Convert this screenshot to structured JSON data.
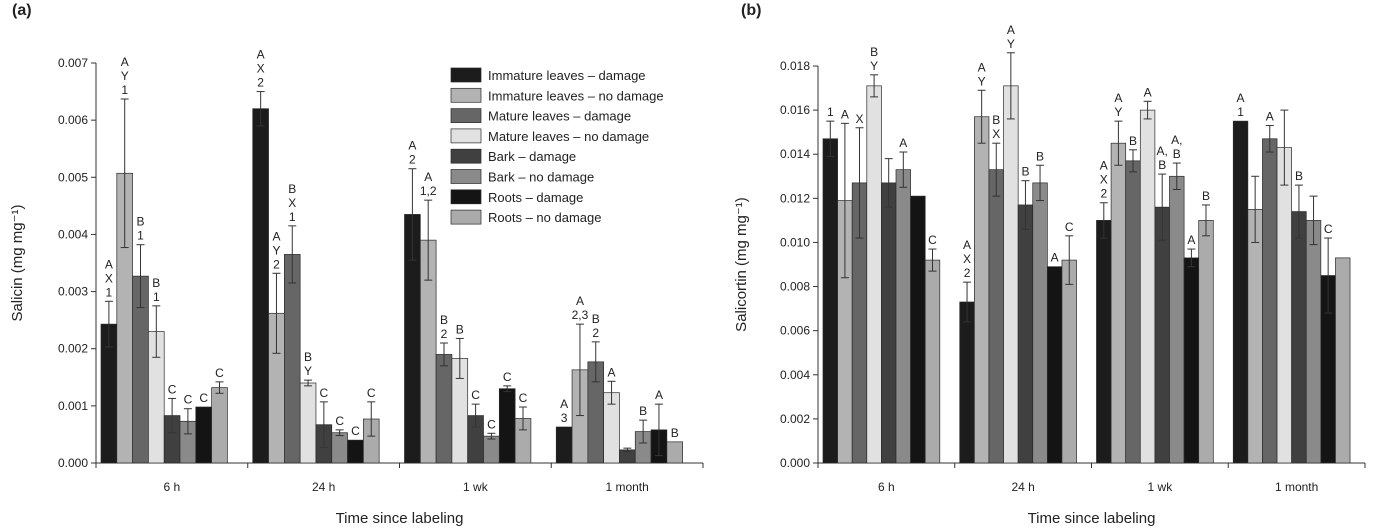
{
  "series_styles": [
    {
      "name": "Immature leaves – damage",
      "color": "#1c1c1c"
    },
    {
      "name": "Immature leaves – no damage",
      "color": "#b3b3b3"
    },
    {
      "name": "Mature leaves – damage",
      "color": "#666666"
    },
    {
      "name": "Mature leaves – no damage",
      "color": "#e1e1e1"
    },
    {
      "name": "Bark – damage",
      "color": "#404040"
    },
    {
      "name": "Bark – no damage",
      "color": "#8a8a8a"
    },
    {
      "name": "Roots – damage",
      "color": "#141414"
    },
    {
      "name": "Roots – no damage",
      "color": "#ababab"
    }
  ],
  "chart_data": [
    {
      "panel_label": "(a)",
      "type": "bar",
      "categories": [
        "6 h",
        "24 h",
        "1 wk",
        "1 month"
      ],
      "xlabel": "Time since labeling",
      "ylabel": "Salicin (mg mg⁻¹)",
      "ylim": [
        0,
        0.007
      ],
      "yticks": [
        "0.000",
        "0.001",
        "0.002",
        "0.003",
        "0.004",
        "0.005",
        "0.006",
        "0.007"
      ],
      "legend_position": "top-right",
      "series": [
        {
          "name": "Immature leaves – damage",
          "values": [
            0.00243,
            0.0062,
            0.00435,
            0.00063
          ],
          "errors": [
            0.0004,
            0.0003,
            0.0008,
            0.0
          ],
          "letters": [
            [
              "A",
              "X",
              "1"
            ],
            [
              "A",
              "X",
              "2"
            ],
            [
              "A",
              "2"
            ],
            [
              "A",
              "3"
            ]
          ]
        },
        {
          "name": "Immature leaves – no damage",
          "values": [
            0.00507,
            0.00262,
            0.0039,
            0.00163
          ],
          "errors": [
            0.0013,
            0.0007,
            0.0007,
            0.0008
          ],
          "letters": [
            [
              "A",
              "Y",
              "1"
            ],
            [
              "A",
              "Y",
              "2"
            ],
            [
              "A",
              "1,2"
            ],
            [
              "A",
              "2,3"
            ]
          ]
        },
        {
          "name": "Mature leaves – damage",
          "values": [
            0.00327,
            0.00365,
            0.0019,
            0.00177
          ],
          "errors": [
            0.00055,
            0.0005,
            0.0002,
            0.00035
          ],
          "letters": [
            [
              "B",
              "1"
            ],
            [
              "B",
              "X",
              "1"
            ],
            [
              "B",
              "2"
            ],
            [
              "B",
              "2"
            ]
          ]
        },
        {
          "name": "Mature leaves – no damage",
          "values": [
            0.0023,
            0.0014,
            0.00183,
            0.00123
          ],
          "errors": [
            0.00045,
            5e-05,
            0.00035,
            0.0002
          ],
          "letters": [
            [
              "B",
              "1"
            ],
            [
              "B",
              "Y"
            ],
            [
              "B"
            ],
            [
              "A"
            ]
          ]
        },
        {
          "name": "Bark – damage",
          "values": [
            0.00083,
            0.00067,
            0.00083,
            0.00023
          ],
          "errors": [
            0.0003,
            0.0004,
            0.0002,
            3e-05
          ],
          "letters": [
            [
              "C"
            ],
            [
              "C"
            ],
            [
              "C"
            ],
            []
          ]
        },
        {
          "name": "Bark – no damage",
          "values": [
            0.00073,
            0.00053,
            0.00047,
            0.00055
          ],
          "errors": [
            0.00022,
            5e-05,
            5e-05,
            0.0002
          ],
          "letters": [
            [
              "C"
            ],
            [
              "C"
            ],
            [
              "C"
            ],
            [
              "B"
            ]
          ]
        },
        {
          "name": "Roots – damage",
          "values": [
            0.00098,
            0.0004,
            0.0013,
            0.00058
          ],
          "errors": [
            0.0,
            0.0,
            5e-05,
            0.00045
          ],
          "letters": [
            [
              "C"
            ],
            [
              "C"
            ],
            [
              "C"
            ],
            [
              "A"
            ]
          ]
        },
        {
          "name": "Roots – no damage",
          "values": [
            0.00132,
            0.00077,
            0.00078,
            0.00037
          ],
          "errors": [
            0.0001,
            0.0003,
            0.0002,
            0.0
          ],
          "letters": [
            [
              "C"
            ],
            [
              "C"
            ],
            [
              "C"
            ],
            [
              "B"
            ]
          ]
        }
      ]
    },
    {
      "panel_label": "(b)",
      "type": "bar",
      "categories": [
        "6 h",
        "24 h",
        "1 wk",
        "1 month"
      ],
      "xlabel": "Time since labeling",
      "ylabel": "Salicortin (mg mg⁻¹)",
      "ylim": [
        0,
        0.018
      ],
      "yticks": [
        "0.000",
        "0.002",
        "0.004",
        "0.006",
        "0.008",
        "0.010",
        "0.012",
        "0.014",
        "0.016",
        "0.018"
      ],
      "series": [
        {
          "name": "Immature leaves – damage",
          "values": [
            0.0147,
            0.0073,
            0.011,
            0.0155
          ],
          "errors": [
            0.0008,
            0.0009,
            0.0008,
            0.0
          ],
          "letters": [
            [
              "1"
            ],
            [
              "A",
              "X",
              "2"
            ],
            [
              "A",
              "X",
              "2"
            ],
            [
              "A",
              "1"
            ]
          ]
        },
        {
          "name": "Immature leaves – no damage",
          "values": [
            0.0119,
            0.0157,
            0.0145,
            0.0115
          ],
          "errors": [
            0.0035,
            0.0012,
            0.001,
            0.0015
          ],
          "letters": [
            [
              "A"
            ],
            [
              "A",
              "Y"
            ],
            [
              "A",
              "Y"
            ],
            []
          ]
        },
        {
          "name": "Mature leaves – damage",
          "values": [
            0.0127,
            0.0133,
            0.0137,
            0.0147
          ],
          "errors": [
            0.0025,
            0.0012,
            0.0005,
            0.0006
          ],
          "letters": [
            [
              "X"
            ],
            [
              "B",
              "X"
            ],
            [
              "B"
            ],
            [
              "A"
            ]
          ]
        },
        {
          "name": "Mature leaves – no damage",
          "values": [
            0.0171,
            0.0171,
            0.016,
            0.0143
          ],
          "errors": [
            0.0005,
            0.0015,
            0.0004,
            0.0017
          ],
          "letters": [
            [
              "B",
              "Y"
            ],
            [
              "A",
              "Y"
            ],
            [
              "A"
            ],
            []
          ]
        },
        {
          "name": "Bark – damage",
          "values": [
            0.0127,
            0.0117,
            0.0116,
            0.0114
          ],
          "errors": [
            0.0011,
            0.0011,
            0.0015,
            0.0012
          ],
          "letters": [
            [],
            [
              "B"
            ],
            [
              "A,",
              "B"
            ],
            [
              "B"
            ]
          ]
        },
        {
          "name": "Bark – no damage",
          "values": [
            0.0133,
            0.0127,
            0.013,
            0.011
          ],
          "errors": [
            0.0008,
            0.0008,
            0.0006,
            0.0011
          ],
          "letters": [
            [
              "A"
            ],
            [
              "B"
            ],
            [
              "A,",
              "B"
            ],
            []
          ]
        },
        {
          "name": "Roots – damage",
          "values": [
            0.0121,
            0.0089,
            0.0093,
            0.0085
          ],
          "errors": [
            0.0,
            0.0,
            0.0004,
            0.0017
          ],
          "letters": [
            [],
            [
              "A"
            ],
            [
              "A"
            ],
            [
              "C"
            ]
          ]
        },
        {
          "name": "Roots – no damage",
          "values": [
            0.0092,
            0.0092,
            0.011,
            0.0093
          ],
          "errors": [
            0.0005,
            0.0011,
            0.0007,
            0.0
          ],
          "letters": [
            [
              "C"
            ],
            [
              "C"
            ],
            [
              "B"
            ],
            []
          ]
        }
      ]
    }
  ]
}
